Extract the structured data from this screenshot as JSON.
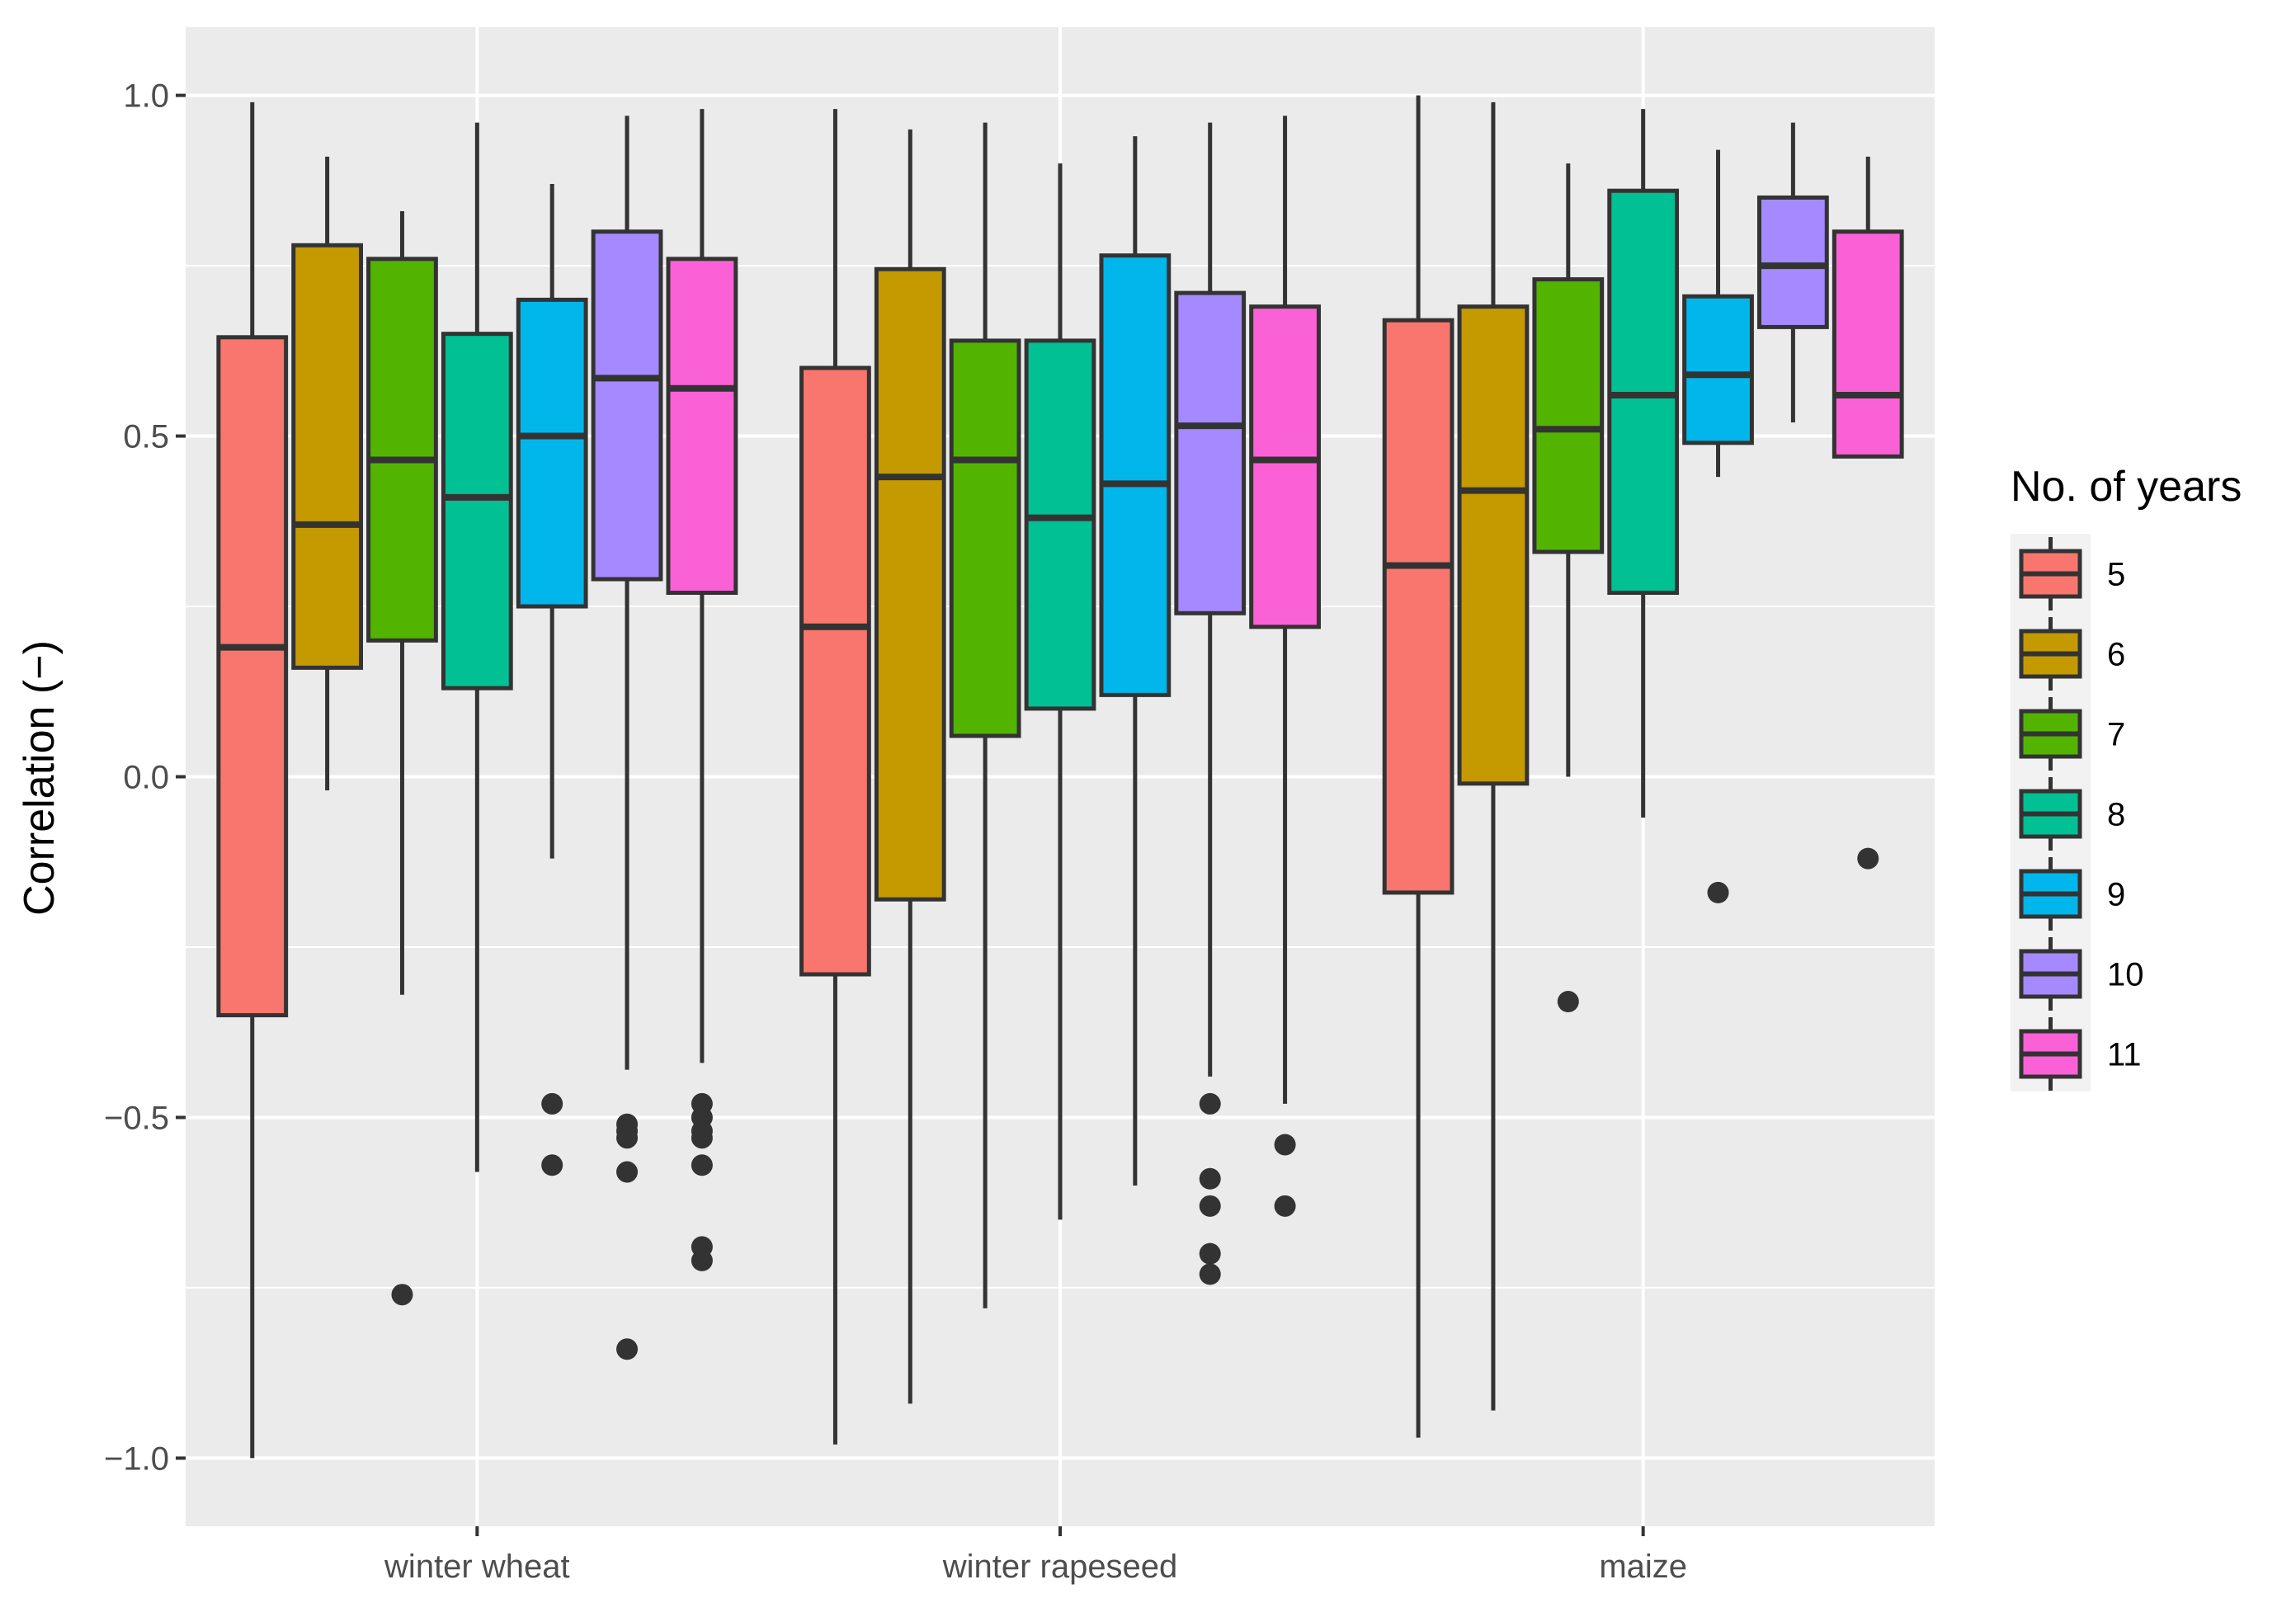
{
  "chart_data": {
    "type": "boxplot",
    "title": "",
    "xlabel": "",
    "ylabel": "Correlation (−)",
    "ylim": [
      -1.1,
      1.1
    ],
    "y_ticks": [
      1.0,
      0.5,
      0.0,
      -0.5,
      -1.0
    ],
    "y_tick_labels": [
      "1.0",
      "0.5",
      "0.0",
      "−0.5",
      "−1.0"
    ],
    "categories": [
      "winter wheat",
      "winter rapeseed",
      "maize"
    ],
    "legend": {
      "title": "No. of years",
      "position": "right",
      "entries": [
        "5",
        "6",
        "7",
        "8",
        "9",
        "10",
        "11"
      ]
    },
    "series": [
      {
        "name": "5",
        "color": "#F8766D",
        "boxes": [
          {
            "whisker_low": -1.0,
            "q1": -0.35,
            "median": 0.19,
            "q3": 0.645,
            "whisker_high": 0.99,
            "outliers": []
          },
          {
            "whisker_low": -0.98,
            "q1": -0.29,
            "median": 0.22,
            "q3": 0.6,
            "whisker_high": 0.98,
            "outliers": []
          },
          {
            "whisker_low": -0.97,
            "q1": -0.17,
            "median": 0.31,
            "q3": 0.67,
            "whisker_high": 1.0,
            "outliers": []
          }
        ]
      },
      {
        "name": "6",
        "color": "#C49A00",
        "boxes": [
          {
            "whisker_low": -0.02,
            "q1": 0.16,
            "median": 0.37,
            "q3": 0.78,
            "whisker_high": 0.91,
            "outliers": []
          },
          {
            "whisker_low": -0.92,
            "q1": -0.18,
            "median": 0.44,
            "q3": 0.745,
            "whisker_high": 0.95,
            "outliers": []
          },
          {
            "whisker_low": -0.93,
            "q1": -0.01,
            "median": 0.42,
            "q3": 0.69,
            "whisker_high": 0.99,
            "outliers": []
          }
        ]
      },
      {
        "name": "7",
        "color": "#53B400",
        "boxes": [
          {
            "whisker_low": -0.32,
            "q1": 0.2,
            "median": 0.465,
            "q3": 0.76,
            "whisker_high": 0.83,
            "outliers": [
              -0.76
            ]
          },
          {
            "whisker_low": -0.78,
            "q1": 0.06,
            "median": 0.465,
            "q3": 0.64,
            "whisker_high": 0.96,
            "outliers": []
          },
          {
            "whisker_low": 0.0,
            "q1": 0.33,
            "median": 0.51,
            "q3": 0.73,
            "whisker_high": 0.9,
            "outliers": [
              -0.33
            ]
          }
        ]
      },
      {
        "name": "8",
        "color": "#00C094",
        "boxes": [
          {
            "whisker_low": -0.58,
            "q1": 0.13,
            "median": 0.41,
            "q3": 0.65,
            "whisker_high": 0.96,
            "outliers": []
          },
          {
            "whisker_low": -0.65,
            "q1": 0.1,
            "median": 0.38,
            "q3": 0.64,
            "whisker_high": 0.9,
            "outliers": []
          },
          {
            "whisker_low": -0.06,
            "q1": 0.27,
            "median": 0.56,
            "q3": 0.86,
            "whisker_high": 0.98,
            "outliers": []
          }
        ]
      },
      {
        "name": "9",
        "color": "#00B6EB",
        "boxes": [
          {
            "whisker_low": -0.12,
            "q1": 0.25,
            "median": 0.5,
            "q3": 0.7,
            "whisker_high": 0.87,
            "outliers": [
              -0.48,
              -0.57
            ]
          },
          {
            "whisker_low": -0.6,
            "q1": 0.12,
            "median": 0.43,
            "q3": 0.765,
            "whisker_high": 0.94,
            "outliers": []
          },
          {
            "whisker_low": 0.44,
            "q1": 0.49,
            "median": 0.59,
            "q3": 0.705,
            "whisker_high": 0.92,
            "outliers": [
              -0.17
            ]
          }
        ]
      },
      {
        "name": "10",
        "color": "#A58AFF",
        "boxes": [
          {
            "whisker_low": -0.43,
            "q1": 0.29,
            "median": 0.585,
            "q3": 0.8,
            "whisker_high": 0.97,
            "outliers": [
              -0.51,
              -0.52,
              -0.53,
              -0.58,
              -0.84
            ]
          },
          {
            "whisker_low": -0.44,
            "q1": 0.24,
            "median": 0.515,
            "q3": 0.71,
            "whisker_high": 0.96,
            "outliers": [
              -0.48,
              -0.59,
              -0.63,
              -0.7,
              -0.73
            ]
          },
          {
            "whisker_low": 0.52,
            "q1": 0.66,
            "median": 0.75,
            "q3": 0.85,
            "whisker_high": 0.96,
            "outliers": []
          }
        ]
      },
      {
        "name": "11",
        "color": "#FB61D7",
        "boxes": [
          {
            "whisker_low": -0.42,
            "q1": 0.27,
            "median": 0.57,
            "q3": 0.76,
            "whisker_high": 0.98,
            "outliers": [
              -0.48,
              -0.5,
              -0.52,
              -0.53,
              -0.57,
              -0.69,
              -0.71
            ]
          },
          {
            "whisker_low": -0.48,
            "q1": 0.22,
            "median": 0.465,
            "q3": 0.69,
            "whisker_high": 0.97,
            "outliers": [
              -0.54,
              -0.63
            ]
          },
          {
            "whisker_low": 0.47,
            "q1": 0.47,
            "median": 0.56,
            "q3": 0.8,
            "whisker_high": 0.91,
            "outliers": [
              -0.12
            ]
          }
        ]
      }
    ]
  }
}
